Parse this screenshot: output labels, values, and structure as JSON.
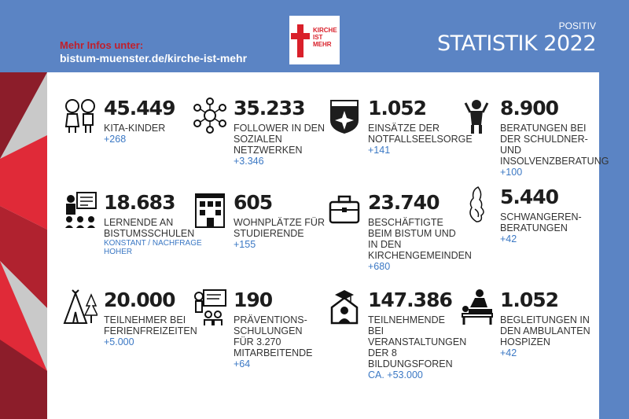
{
  "header": {
    "info_label": "Mehr Infos unter:",
    "info_url": "bistum-muenster.de/kirche-ist-mehr",
    "logo_lines": [
      "KIRCHE",
      "IST",
      "MEHR"
    ],
    "positiv": "POSITIV",
    "title": "STATISTIK 2022"
  },
  "stats": [
    {
      "number": "45.449",
      "label": "KITA-KINDER",
      "delta": "+268",
      "icon": "children-icon"
    },
    {
      "number": "35.233",
      "label": "FOLLOWER IN DEN SOZIALEN NETZWERKEN",
      "delta": "+3.346",
      "icon": "social-network-icon"
    },
    {
      "number": "1.052",
      "label": "EINSÄTZE DER NOTFALLSEELSORGE",
      "delta": "+141",
      "icon": "notfallseelsorge-badge-icon"
    },
    {
      "number": "8.900",
      "label": "BERATUNGEN BEI DER SCHULDNER- UND INSOLVENZBERATUNG",
      "delta": "+100",
      "icon": "stressed-person-icon"
    },
    {
      "number": "18.683",
      "label": "LERNENDE AN BISTUMSSCHULEN",
      "delta": "KONSTANT / NACHFRAGE HOHER",
      "icon": "classroom-icon"
    },
    {
      "number": "605",
      "label": "WOHNPLÄTZE FÜR STUDIERENDE",
      "delta": "+155",
      "icon": "building-icon"
    },
    {
      "number": "23.740",
      "label": "BESCHÄFTIGTE BEIM BISTUM UND IN DEN KIRCHENGEMEINDEN",
      "delta": "+680",
      "icon": "briefcase-icon"
    },
    {
      "number": "5.440",
      "label": "SCHWANGEREN-BERATUNGEN",
      "delta": "+42",
      "icon": "pregnant-woman-icon"
    },
    {
      "number": "20.000",
      "label": "TEILNEHMER BEI FERIENFREIZEITEN",
      "delta": "+5.000",
      "icon": "tent-icon"
    },
    {
      "number": "190",
      "label": "PRÄVENTIONS-SCHULUNGEN FÜR 3.270 MITARBEITENDE",
      "delta": "+64",
      "icon": "training-icon"
    },
    {
      "number": "147.386",
      "label": "TEILNEHMENDE BEI VERANSTALTUNGEN DER 8 BILDUNGSFOREN",
      "delta": "ca. +53.000",
      "icon": "graduation-house-icon"
    },
    {
      "number": "1.052",
      "label": "BEGLEITUNGEN IN DEN AMBULANTEN HOSPIZEN",
      "delta": "+42",
      "icon": "hospice-care-icon"
    }
  ],
  "colors": {
    "background": "#5b84c4",
    "accent_red": "#d9202a",
    "delta_blue": "#3b78c4"
  }
}
